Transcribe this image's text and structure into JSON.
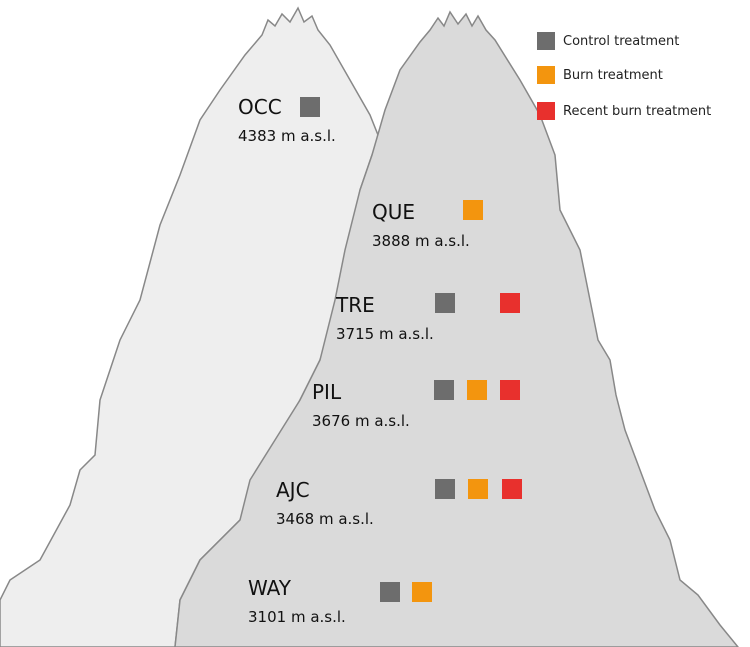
{
  "colors": {
    "control": "#6d6d6d",
    "burn": "#f3950e",
    "recent_burn": "#e8302d",
    "back_mountain": "#eeeeee",
    "front_mountain": "#dadada",
    "outline": "#888888"
  },
  "legend": [
    {
      "key": "control",
      "label": "Control treatment"
    },
    {
      "key": "burn",
      "label": "Burn treatment"
    },
    {
      "key": "recent_burn",
      "label": "Recent burn treatment"
    }
  ],
  "sites": [
    {
      "code": "OCC",
      "elevation": "4383 m a.s.l.",
      "treatments": [
        "control"
      ]
    },
    {
      "code": "QUE",
      "elevation": "3888 m a.s.l.",
      "treatments": [
        "burn"
      ]
    },
    {
      "code": "TRE",
      "elevation": "3715 m a.s.l.",
      "treatments": [
        "control",
        "recent_burn"
      ]
    },
    {
      "code": "PIL",
      "elevation": "3676 m a.s.l.",
      "treatments": [
        "control",
        "burn",
        "recent_burn"
      ]
    },
    {
      "code": "AJC",
      "elevation": "3468 m a.s.l.",
      "treatments": [
        "control",
        "burn",
        "recent_burn"
      ]
    },
    {
      "code": "WAY",
      "elevation": "3101 m a.s.l.",
      "treatments": [
        "control",
        "burn"
      ]
    }
  ]
}
